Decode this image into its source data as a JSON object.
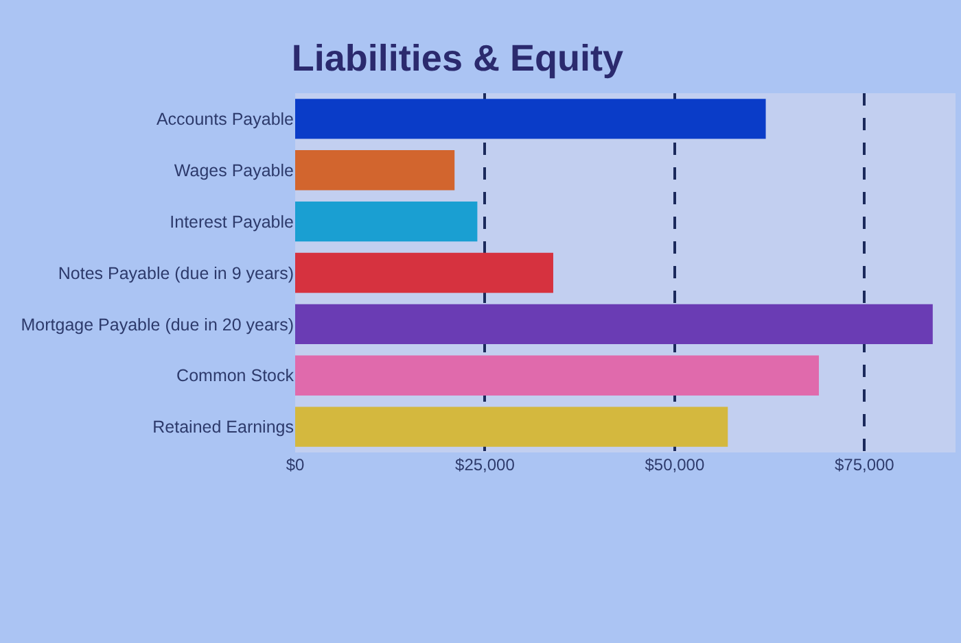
{
  "chart_data": {
    "type": "bar",
    "orientation": "horizontal",
    "title": "Liabilities & Equity",
    "categories": [
      "Accounts Payable",
      "Wages Payable",
      "Interest Payable",
      "Notes Payable (due in 9 years)",
      "Mortgage Payable (due in 20 years)",
      "Common Stock",
      "Retained Earnings"
    ],
    "values": [
      62000,
      21000,
      24000,
      34000,
      84000,
      69000,
      57000
    ],
    "colors": [
      "#0a3cc8",
      "#d2652e",
      "#1a9fd2",
      "#d6323f",
      "#6a3cb4",
      "#e06aac",
      "#d4b83e"
    ],
    "xlim": [
      0,
      87000
    ],
    "xticks": [
      {
        "value": 0,
        "label": "$0"
      },
      {
        "value": 25000,
        "label": "$25,000"
      },
      {
        "value": 50000,
        "label": "$50,000"
      },
      {
        "value": 75000,
        "label": "$75,000"
      }
    ],
    "grid": "x"
  }
}
